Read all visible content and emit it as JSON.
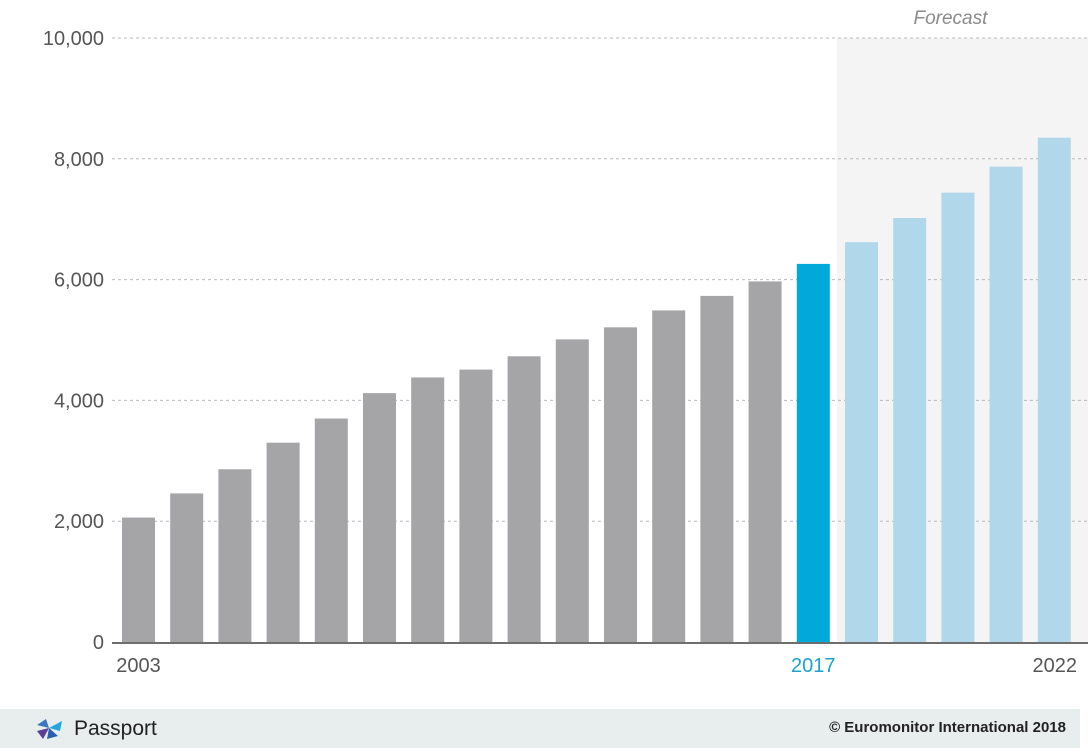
{
  "chart_data": {
    "type": "bar",
    "categories": [
      "2003",
      "2004",
      "2005",
      "2006",
      "2007",
      "2008",
      "2009",
      "2010",
      "2011",
      "2012",
      "2013",
      "2014",
      "2015",
      "2016",
      "2017",
      "2018",
      "2019",
      "2020",
      "2021",
      "2022"
    ],
    "values": [
      2060,
      2460,
      2860,
      3300,
      3700,
      4120,
      4380,
      4510,
      4730,
      5010,
      5210,
      5490,
      5730,
      5970,
      6260,
      6620,
      7020,
      7440,
      7870,
      8350
    ],
    "period": [
      "historic",
      "historic",
      "historic",
      "historic",
      "historic",
      "historic",
      "historic",
      "historic",
      "historic",
      "historic",
      "historic",
      "historic",
      "historic",
      "historic",
      "current",
      "forecast",
      "forecast",
      "forecast",
      "forecast",
      "forecast"
    ],
    "x_tick_labels": [
      {
        "category": "2003",
        "label": "2003"
      },
      {
        "category": "2017",
        "label": "2017"
      },
      {
        "category": "2022",
        "label": "2022"
      }
    ],
    "y_ticks": [
      0,
      2000,
      4000,
      6000,
      8000,
      10000
    ],
    "y_tick_labels": [
      "0",
      "2,000",
      "4,000",
      "6,000",
      "8,000",
      "10,000"
    ],
    "ylim": [
      0,
      10000
    ],
    "grid": "horizontal dashed",
    "forecast_label": "Forecast",
    "colors": {
      "historic": "#a5a5a7",
      "current": "#00aad8",
      "forecast": "#b1d8ea",
      "forecast_band": "#f4f4f4",
      "grid": "#b9b9b9",
      "axis": "#6e6e6e",
      "tick_text": "#555555",
      "current_tick_text": "#1aa3cf"
    }
  },
  "footer": {
    "brand": "Passport",
    "copyright": "© Euromonitor International 2018"
  }
}
